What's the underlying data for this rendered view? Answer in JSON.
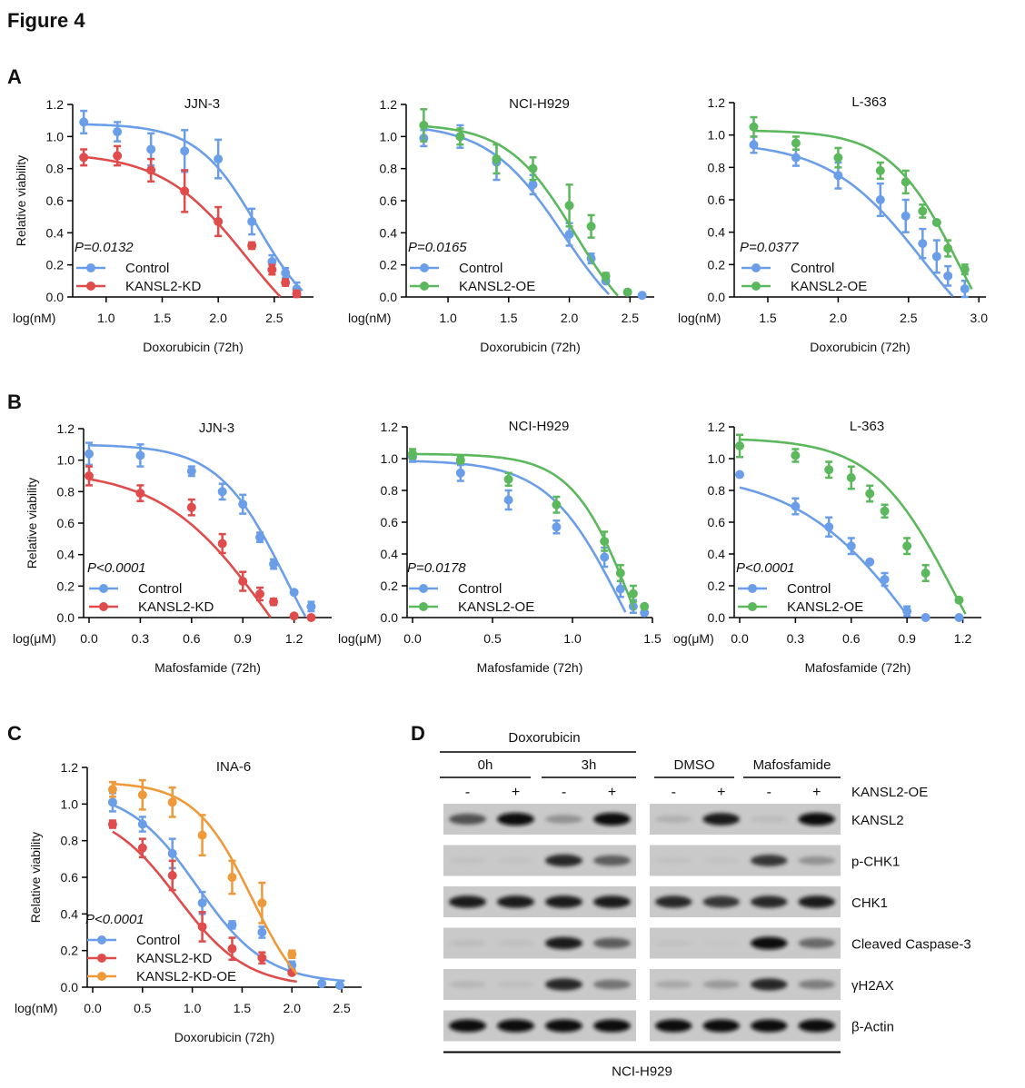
{
  "figure_title": "Figure 4",
  "panel_letters": {
    "A": "A",
    "B": "B",
    "C": "C",
    "D": "D"
  },
  "colors": {
    "control": "#6b9ee8",
    "kd": "#e04b4b",
    "oe": "#5cb85c",
    "kd_oe": "#ef9a3a"
  },
  "chart_data": [
    {
      "id": "A1",
      "type": "line",
      "title": "JJN-3",
      "xlabel": "Doxorubicin (72h)",
      "x_unit_label": "log(nM)",
      "ylabel": "Relative viability",
      "xlim": [
        0.75,
        2.85
      ],
      "ylim": [
        0,
        1.2
      ],
      "xticks": [
        1.0,
        1.5,
        2.0,
        2.5
      ],
      "xtick_labels": [
        "1.0",
        "1.5",
        "2.0",
        "2.5"
      ],
      "yticks": [
        0,
        0.2,
        0.4,
        0.6,
        0.8,
        1.0,
        1.2
      ],
      "ytick_labels": [
        "0.0",
        "0.2",
        "0.4",
        "0.6",
        "0.8",
        "1.0",
        "1.2"
      ],
      "pvalue": "P=0.0132",
      "series": [
        {
          "name": "Control",
          "color_key": "control",
          "x": [
            0.8,
            1.1,
            1.4,
            1.7,
            2.0,
            2.3,
            2.48,
            2.6,
            2.7
          ],
          "y": [
            1.09,
            1.03,
            0.92,
            0.91,
            0.86,
            0.47,
            0.22,
            0.15,
            0.05
          ],
          "err": [
            0.07,
            0.06,
            0.1,
            0.13,
            0.12,
            0.08,
            0.04,
            0.03,
            0.04
          ],
          "fit": {
            "top": 1.08,
            "bottom": -0.2,
            "ec50": 2.35,
            "hill": 1.6
          }
        },
        {
          "name": "KANSL2-KD",
          "color_key": "kd",
          "x": [
            0.8,
            1.1,
            1.4,
            1.7,
            2.0,
            2.3,
            2.48,
            2.6,
            2.7
          ],
          "y": [
            0.87,
            0.88,
            0.79,
            0.66,
            0.47,
            0.32,
            0.17,
            0.09,
            0.02
          ],
          "err": [
            0.05,
            0.06,
            0.07,
            0.13,
            0.09,
            0.02,
            0.03,
            0.02,
            0.02
          ],
          "fit": {
            "top": 0.9,
            "bottom": -0.4,
            "ec50": 2.25,
            "hill": 1.15
          }
        }
      ]
    },
    {
      "id": "A2",
      "type": "line",
      "title": "NCI-H929",
      "xlabel": "Doxorubicin (72h)",
      "x_unit_label": "log(nM)",
      "ylabel": "",
      "xlim": [
        0.7,
        2.7
      ],
      "ylim": [
        0,
        1.2
      ],
      "xticks": [
        1.0,
        1.5,
        2.0,
        2.5
      ],
      "xtick_labels": [
        "1.0",
        "1.5",
        "2.0",
        "2.5"
      ],
      "yticks": [
        0,
        0.2,
        0.4,
        0.6,
        0.8,
        1.0,
        1.2
      ],
      "ytick_labels": [
        "0.0",
        "0.2",
        "0.4",
        "0.6",
        "0.8",
        "1.0",
        "1.2"
      ],
      "pvalue": "P=0.0165",
      "series": [
        {
          "name": "Control",
          "color_key": "control",
          "x": [
            0.8,
            1.1,
            1.4,
            1.7,
            2.0,
            2.18,
            2.3,
            2.48,
            2.6
          ],
          "y": [
            0.99,
            1.0,
            0.84,
            0.7,
            0.39,
            0.24,
            0.1,
            0.03,
            0.01
          ],
          "err": [
            0.05,
            0.07,
            0.11,
            0.06,
            0.07,
            0.03,
            0.01,
            0.01,
            0.01
          ],
          "fit": {
            "top": 1.08,
            "bottom": -0.3,
            "ec50": 1.95,
            "hill": 1.4
          }
        },
        {
          "name": "KANSL2-OE",
          "color_key": "oe",
          "x": [
            0.8,
            1.1,
            1.4,
            1.7,
            2.0,
            2.18,
            2.3,
            2.48
          ],
          "y": [
            1.07,
            1.0,
            0.86,
            0.8,
            0.57,
            0.44,
            0.13,
            0.03
          ],
          "err": [
            0.1,
            0.05,
            0.09,
            0.07,
            0.13,
            0.07,
            0.02,
            0.01
          ],
          "fit": {
            "top": 1.08,
            "bottom": -0.3,
            "ec50": 2.05,
            "hill": 1.55
          }
        }
      ]
    },
    {
      "id": "A3",
      "type": "line",
      "title": "L-363",
      "xlabel": "Doxorubicin (72h)",
      "x_unit_label": "log(nM)",
      "ylabel": "",
      "xlim": [
        1.3,
        3.05
      ],
      "ylim": [
        0,
        1.2
      ],
      "xticks": [
        1.5,
        2.0,
        2.5,
        3.0
      ],
      "xtick_labels": [
        "1.5",
        "2.0",
        "2.5",
        "3.0"
      ],
      "yticks": [
        0,
        0.2,
        0.4,
        0.6,
        0.8,
        1.0,
        1.2
      ],
      "ytick_labels": [
        "0.0",
        "0.2",
        "0.4",
        "0.6",
        "0.8",
        "1.0",
        "1.2"
      ],
      "pvalue": "P=0.0377",
      "series": [
        {
          "name": "Control",
          "color_key": "control",
          "x": [
            1.4,
            1.7,
            2.0,
            2.3,
            2.48,
            2.6,
            2.7,
            2.78,
            2.9
          ],
          "y": [
            0.94,
            0.86,
            0.75,
            0.6,
            0.5,
            0.33,
            0.25,
            0.13,
            0.05
          ],
          "err": [
            0.05,
            0.05,
            0.08,
            0.1,
            0.1,
            0.09,
            0.1,
            0.06,
            0.05
          ],
          "fit": {
            "top": 0.96,
            "bottom": -0.5,
            "ec50": 2.6,
            "hill": 1.3
          }
        },
        {
          "name": "KANSL2-OE",
          "color_key": "oe",
          "x": [
            1.4,
            1.7,
            2.0,
            2.3,
            2.48,
            2.6,
            2.7,
            2.78,
            2.9
          ],
          "y": [
            1.05,
            0.95,
            0.86,
            0.78,
            0.71,
            0.53,
            0.46,
            0.3,
            0.17
          ],
          "err": [
            0.06,
            0.04,
            0.06,
            0.05,
            0.07,
            0.04,
            0.01,
            0.05,
            0.03
          ],
          "fit": {
            "top": 1.03,
            "bottom": -0.6,
            "ec50": 2.85,
            "hill": 1.8
          }
        }
      ]
    },
    {
      "id": "B1",
      "type": "line",
      "title": "JJN-3",
      "xlabel": "Mafosfamide (72h)",
      "x_unit_label": "log(μM)",
      "ylabel": "Relative viability",
      "xlim": [
        0,
        1.42
      ],
      "ylim": [
        0,
        1.2
      ],
      "xticks": [
        0.0,
        0.3,
        0.6,
        0.9,
        1.2
      ],
      "xtick_labels": [
        "0.0",
        "0.3",
        "0.6",
        "0.9",
        "1.2"
      ],
      "yticks": [
        0,
        0.2,
        0.4,
        0.6,
        0.8,
        1.0,
        1.2
      ],
      "ytick_labels": [
        "0.0",
        "0.2",
        "0.4",
        "0.6",
        "0.8",
        "1.0",
        "1.2"
      ],
      "pvalue": "P<0.0001",
      "series": [
        {
          "name": "Control",
          "color_key": "control",
          "x": [
            0,
            0.3,
            0.6,
            0.78,
            0.9,
            1.0,
            1.08,
            1.2,
            1.3
          ],
          "y": [
            1.04,
            1.03,
            0.93,
            0.8,
            0.72,
            0.51,
            0.34,
            0.16,
            0.07
          ],
          "err": [
            0.07,
            0.07,
            0.03,
            0.05,
            0.06,
            0.03,
            0.03,
            0.01,
            0.03
          ],
          "fit": {
            "top": 1.1,
            "bottom": -0.6,
            "ec50": 1.15,
            "hill": 2.2
          }
        },
        {
          "name": "KANSL2-KD",
          "color_key": "kd",
          "x": [
            0,
            0.3,
            0.6,
            0.78,
            0.9,
            1.0,
            1.08,
            1.2,
            1.3
          ],
          "y": [
            0.9,
            0.79,
            0.7,
            0.47,
            0.23,
            0.15,
            0.1,
            0.01,
            0.0
          ],
          "err": [
            0.06,
            0.05,
            0.05,
            0.06,
            0.06,
            0.04,
            0.02,
            0.01,
            0.01
          ],
          "fit": {
            "top": 0.94,
            "bottom": -0.9,
            "ec50": 1.05,
            "hill": 1.4
          }
        }
      ]
    },
    {
      "id": "B2",
      "type": "line",
      "title": "NCI-H929",
      "xlabel": "Mafosfamide (72h)",
      "x_unit_label": "log(μM)",
      "ylabel": "",
      "xlim": [
        0,
        1.5
      ],
      "ylim": [
        0,
        1.2
      ],
      "xticks": [
        0.0,
        0.5,
        1.0,
        1.5
      ],
      "xtick_labels": [
        "0.0",
        "0.5",
        "1.0",
        "1.5"
      ],
      "yticks": [
        0,
        0.2,
        0.4,
        0.6,
        0.8,
        1.0,
        1.2
      ],
      "ytick_labels": [
        "0.0",
        "0.2",
        "0.4",
        "0.6",
        "0.8",
        "1.0",
        "1.2"
      ],
      "pvalue": "P=0.0178",
      "series": [
        {
          "name": "Control",
          "color_key": "control",
          "x": [
            0,
            0.3,
            0.6,
            0.9,
            1.2,
            1.3,
            1.38,
            1.45
          ],
          "y": [
            1.01,
            0.91,
            0.74,
            0.57,
            0.38,
            0.18,
            0.07,
            0.03
          ],
          "err": [
            0.03,
            0.05,
            0.06,
            0.04,
            0.06,
            0.05,
            0.04,
            0.01
          ],
          "fit": {
            "top": 0.99,
            "bottom": -0.8,
            "ec50": 1.3,
            "hill": 1.9
          }
        },
        {
          "name": "KANSL2-OE",
          "color_key": "oe",
          "x": [
            0,
            0.3,
            0.6,
            0.9,
            1.2,
            1.3,
            1.38,
            1.45
          ],
          "y": [
            1.03,
            0.99,
            0.87,
            0.71,
            0.48,
            0.28,
            0.15,
            0.07
          ],
          "err": [
            0.03,
            0.02,
            0.04,
            0.05,
            0.06,
            0.05,
            0.05,
            0.01
          ],
          "fit": {
            "top": 1.03,
            "bottom": -0.9,
            "ec50": 1.38,
            "hill": 2.3
          }
        }
      ]
    },
    {
      "id": "B3",
      "type": "line",
      "title": "L-363",
      "xlabel": "Mafosfamide (72h)",
      "x_unit_label": "log(μM)",
      "ylabel": "",
      "xlim": [
        0,
        1.3
      ],
      "ylim": [
        0,
        1.2
      ],
      "xticks": [
        0.0,
        0.3,
        0.6,
        0.9,
        1.2
      ],
      "xtick_labels": [
        "0.0",
        "0.3",
        "0.6",
        "0.9",
        "1.2"
      ],
      "yticks": [
        0,
        0.2,
        0.4,
        0.6,
        0.8,
        1.0,
        1.2
      ],
      "ytick_labels": [
        "0.0",
        "0.2",
        "0.4",
        "0.6",
        "0.8",
        "1.0",
        "1.2"
      ],
      "pvalue": "P<0.0001",
      "series": [
        {
          "name": "Control",
          "color_key": "control",
          "x": [
            0,
            0.3,
            0.48,
            0.6,
            0.7,
            0.78,
            0.9,
            1.0,
            1.18
          ],
          "y": [
            0.9,
            0.7,
            0.57,
            0.45,
            0.35,
            0.24,
            0.04,
            0.0,
            0.0
          ],
          "err": [
            0.01,
            0.05,
            0.06,
            0.05,
            0.01,
            0.04,
            0.03,
            0.01,
            0.01
          ],
          "fit": {
            "top": 0.92,
            "bottom": -1.2,
            "ec50": 1.0,
            "hill": 1.3
          }
        },
        {
          "name": "KANSL2-OE",
          "color_key": "oe",
          "x": [
            0,
            0.3,
            0.48,
            0.6,
            0.7,
            0.78,
            0.9,
            1.0,
            1.18
          ],
          "y": [
            1.08,
            1.02,
            0.93,
            0.88,
            0.78,
            0.67,
            0.45,
            0.28,
            0.11
          ],
          "err": [
            0.07,
            0.04,
            0.05,
            0.07,
            0.05,
            0.04,
            0.05,
            0.05,
            0.01
          ],
          "fit": {
            "top": 1.13,
            "bottom": -0.8,
            "ec50": 1.15,
            "hill": 2.0
          }
        }
      ]
    },
    {
      "id": "C1",
      "type": "line",
      "title": "INA-6",
      "xlabel": "Doxorubicin (72h)",
      "x_unit_label": "log(nM)",
      "ylabel": "Relative viability",
      "xlim": [
        0,
        2.7
      ],
      "ylim": [
        0,
        1.2
      ],
      "xticks": [
        0.0,
        0.5,
        1.0,
        1.5,
        2.0,
        2.5
      ],
      "xtick_labels": [
        "0.0",
        "0.5",
        "1.0",
        "1.5",
        "2.0",
        "2.5"
      ],
      "yticks": [
        0,
        0.2,
        0.4,
        0.6,
        0.8,
        1.0,
        1.2
      ],
      "ytick_labels": [
        "0.0",
        "0.2",
        "0.4",
        "0.6",
        "0.8",
        "1.0",
        "1.2"
      ],
      "pvalue": "P<0.0001",
      "series": [
        {
          "name": "Control",
          "color_key": "control",
          "x": [
            0.2,
            0.5,
            0.8,
            1.1,
            1.4,
            1.7,
            2.0,
            2.3,
            2.48
          ],
          "y": [
            1.01,
            0.89,
            0.73,
            0.46,
            0.34,
            0.3,
            0.12,
            0.02,
            0.01
          ],
          "err": [
            0.05,
            0.04,
            0.08,
            0.06,
            0.02,
            0.03,
            0.02,
            0.01,
            0.01
          ],
          "fit": {
            "top": 1.08,
            "bottom": 0.02,
            "ec50": 1.05,
            "hill": 1.25
          }
        },
        {
          "name": "KANSL2-KD",
          "color_key": "kd",
          "x": [
            0.2,
            0.5,
            0.8,
            1.1,
            1.4,
            1.7,
            2.0
          ],
          "y": [
            0.89,
            0.76,
            0.61,
            0.33,
            0.21,
            0.16,
            0.08
          ],
          "err": [
            0.02,
            0.05,
            0.08,
            0.08,
            0.06,
            0.03,
            0.01
          ],
          "fit": {
            "top": 0.98,
            "bottom": 0.0,
            "ec50": 0.85,
            "hill": 1.25
          }
        },
        {
          "name": "KANSL2-KD-OE",
          "color_key": "kd_oe",
          "x": [
            0.2,
            0.5,
            0.8,
            1.1,
            1.4,
            1.7,
            2.0
          ],
          "y": [
            1.08,
            1.05,
            1.01,
            0.83,
            0.6,
            0.46,
            0.18
          ],
          "err": [
            0.04,
            0.08,
            0.08,
            0.11,
            0.09,
            0.11,
            0.02
          ],
          "fit": {
            "top": 1.12,
            "bottom": -0.15,
            "ec50": 1.6,
            "hill": 1.5
          }
        }
      ]
    }
  ],
  "blot": {
    "group_left_header": "Doxorubicin",
    "group_left_sub": [
      "0h",
      "3h"
    ],
    "group_right_sub": [
      "DMSO",
      "Mafosfamide"
    ],
    "lane_signs": [
      "-",
      "+",
      "-",
      "+",
      "-",
      "+",
      "-",
      "+"
    ],
    "condition_label": "KANSL2-OE",
    "cell_line": "NCI-H929",
    "rows": [
      {
        "label": "KANSL2",
        "intensity_left": [
          0.75,
          1.0,
          0.45,
          1.0
        ],
        "intensity_right": [
          0.25,
          0.95,
          0.15,
          1.0
        ]
      },
      {
        "label": "p-CHK1",
        "intensity_left": [
          0.1,
          0.08,
          0.9,
          0.7
        ],
        "intensity_right": [
          0.1,
          0.08,
          0.85,
          0.45
        ]
      },
      {
        "label": "CHK1",
        "intensity_left": [
          0.95,
          0.95,
          0.95,
          0.95
        ],
        "intensity_right": [
          0.9,
          0.85,
          0.9,
          0.95
        ]
      },
      {
        "label": "Cleaved Caspase-3",
        "intensity_left": [
          0.15,
          0.12,
          0.95,
          0.7
        ],
        "intensity_right": [
          0.1,
          0.05,
          1.0,
          0.65
        ]
      },
      {
        "label": "γH2AX",
        "intensity_left": [
          0.2,
          0.12,
          0.9,
          0.6
        ],
        "intensity_right": [
          0.3,
          0.4,
          0.9,
          0.55
        ]
      },
      {
        "label": "β-Actin",
        "intensity_left": [
          1.0,
          1.0,
          1.0,
          1.0
        ],
        "intensity_right": [
          1.0,
          1.0,
          1.0,
          1.0
        ]
      }
    ]
  }
}
